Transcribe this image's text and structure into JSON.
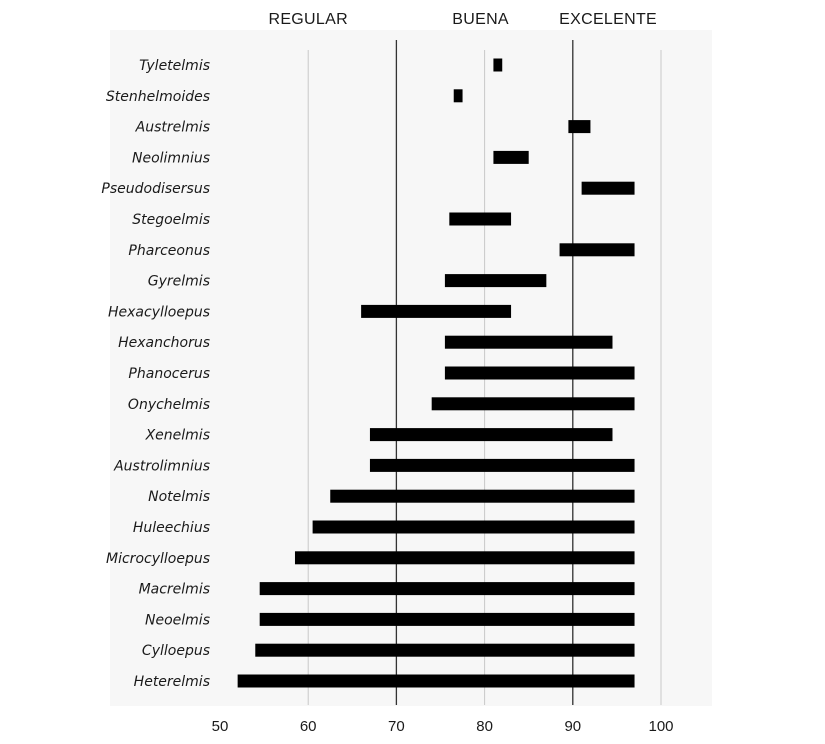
{
  "chart_data": {
    "type": "bar",
    "orientation": "horizontal-range",
    "title": "",
    "xlabel": "",
    "ylabel": "",
    "xlim": [
      50,
      100
    ],
    "x_ticks": [
      50,
      60,
      70,
      80,
      90,
      100
    ],
    "gridlines_at": [
      60,
      70,
      80,
      90,
      100
    ],
    "grid": true,
    "bands": [
      {
        "label": "REGULAR",
        "center": 60
      },
      {
        "label": "BUENA",
        "center": 80
      },
      {
        "label": "EXCELENTE",
        "center": 94
      }
    ],
    "band_dividers": [
      70,
      90
    ],
    "categories": [
      "Tyletelmis",
      "Stenhelmoides",
      "Austrelmis",
      "Neolimnius",
      "Pseudodisersus",
      "Stegoelmis",
      "Pharceonus",
      "Gyrelmis",
      "Hexacylloepus",
      "Hexanchorus",
      "Phanocerus",
      "Onychelmis",
      "Xenelmis",
      "Austrolimnius",
      "Notelmis",
      "Huleechius",
      "Microcylloepus",
      "Macrelmis",
      "Neoelmis",
      "Cylloepus",
      "Heterelmis"
    ],
    "ranges": [
      [
        81,
        82
      ],
      [
        76.5,
        77.5
      ],
      [
        89.5,
        92
      ],
      [
        81,
        85
      ],
      [
        91,
        97
      ],
      [
        76,
        83
      ],
      [
        88.5,
        97
      ],
      [
        75.5,
        87
      ],
      [
        66,
        83
      ],
      [
        75.5,
        94.5
      ],
      [
        75.5,
        97
      ],
      [
        74,
        97
      ],
      [
        67,
        94.5
      ],
      [
        67,
        97
      ],
      [
        62.5,
        97
      ],
      [
        60.5,
        97
      ],
      [
        58.5,
        97
      ],
      [
        54.5,
        97
      ],
      [
        54.5,
        97
      ],
      [
        54,
        97
      ],
      [
        52,
        97
      ]
    ],
    "colors": {
      "bar": "#000000",
      "divider": "#333333",
      "grid": "#c8c8c8",
      "panel": "#f7f7f7"
    }
  }
}
